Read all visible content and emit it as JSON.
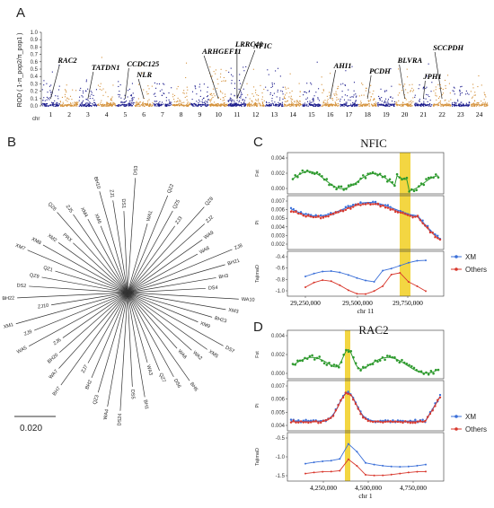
{
  "panel_labels": {
    "a": "A",
    "b": "B",
    "c": "C",
    "d": "D"
  },
  "manhattan": {
    "ylabel": "ROD ( 1-π_pop2/π_pop1 )",
    "chr_label": "chr",
    "yticks": [
      "0.0",
      "0.1",
      "0.2",
      "0.3",
      "0.4",
      "0.5",
      "0.6",
      "0.7",
      "0.8",
      "0.9",
      "1.0"
    ],
    "chromosomes": [
      "1",
      "2",
      "3",
      "4",
      "5",
      "6",
      "7",
      "8",
      "9",
      "10",
      "11",
      "12",
      "13",
      "14",
      "15",
      "16",
      "17",
      "18",
      "19",
      "20",
      "21",
      "22",
      "23",
      "24"
    ],
    "colors": {
      "odd": "#1a1a8c",
      "even": "#d4913a"
    },
    "genes": [
      {
        "name": "RAC2",
        "chr": 1
      },
      {
        "name": "TATDN1",
        "chr": 3
      },
      {
        "name": "CCDC125",
        "chr": 5
      },
      {
        "name": "NLR",
        "chr": 6
      },
      {
        "name": "ARHGEF11",
        "chr": 10
      },
      {
        "name": "LRRC40",
        "chr": 11
      },
      {
        "name": "NFIC",
        "chr": 11
      },
      {
        "name": "AHI1",
        "chr": 16
      },
      {
        "name": "PCDH",
        "chr": 18
      },
      {
        "name": "BLVRA",
        "chr": 20
      },
      {
        "name": "JPH1",
        "chr": 21
      },
      {
        "name": "SCCPDH",
        "chr": 22
      }
    ]
  },
  "tree": {
    "scale_label": "0.020",
    "leaves": [
      "WA1",
      "QZ2",
      "QZ5",
      "ZJ3",
      "QZ8",
      "ZJ2",
      "WA9",
      "WA8",
      "ZJ8",
      "BH21",
      "BH3",
      "DS4",
      "WA10",
      "XM3",
      "BH23",
      "XM9",
      "DS7",
      "XM5",
      "WA2",
      "WA6",
      "BH6",
      "DS6",
      "QZ7",
      "WA3",
      "BH1",
      "DS5",
      "DS24",
      "WA4",
      "QZ3",
      "BH2",
      "ZJ7",
      "BH7",
      "WA7",
      "BH20",
      "ZJ6",
      "WA5",
      "ZJ9",
      "XM1",
      "ZJ10",
      "BH22",
      "DS2",
      "QZ9",
      "QZ1",
      "XM7",
      "XM8",
      "XM2",
      "PRX",
      "QZ6",
      "ZJ5",
      "XM4",
      "XM6",
      "BH10",
      "ZJ1",
      "DS1",
      "DS3"
    ]
  },
  "nfic": {
    "title": "NFIC",
    "xlabel": "chr 11",
    "xticks": [
      "29,250,000",
      "29,500,000",
      "29,750,000"
    ],
    "fst_label": "Fst",
    "fst_ticks": [
      "0.004",
      "0.002",
      "0.000"
    ],
    "pi_label": "Pi",
    "pi_ticks": [
      "0.007",
      "0.006",
      "0.005",
      "0.004",
      "0.003",
      "0.002"
    ],
    "tajima_label": "TajimaD",
    "tajima_ticks": [
      "-0.4",
      "-0.6",
      "-0.8",
      "-1.0"
    ],
    "legend": [
      {
        "name": "XM",
        "color": "#3a6fd8"
      },
      {
        "name": "Others",
        "color": "#d8372c"
      }
    ]
  },
  "rac2": {
    "title": "RAC2",
    "xlabel": "chr 1",
    "xticks": [
      "4,250,000",
      "4,500,000",
      "4,750,000"
    ],
    "fst_label": "Fst",
    "fst_ticks": [
      "0.004",
      "0.002",
      "0.000"
    ],
    "pi_label": "Pi",
    "pi_ticks": [
      "0.007",
      "0.006",
      "0.005",
      "0.004"
    ],
    "tajima_label": "TajimaD",
    "tajima_ticks": [
      "-0.5",
      "-1.0",
      "-1.5"
    ],
    "legend": [
      {
        "name": "XM",
        "color": "#3a6fd8"
      },
      {
        "name": "Others",
        "color": "#d8372c"
      }
    ]
  },
  "colors": {
    "fst": "#2e9a2e",
    "highlight": "#f2d22e",
    "xm": "#3a6fd8",
    "others": "#d8372c"
  }
}
